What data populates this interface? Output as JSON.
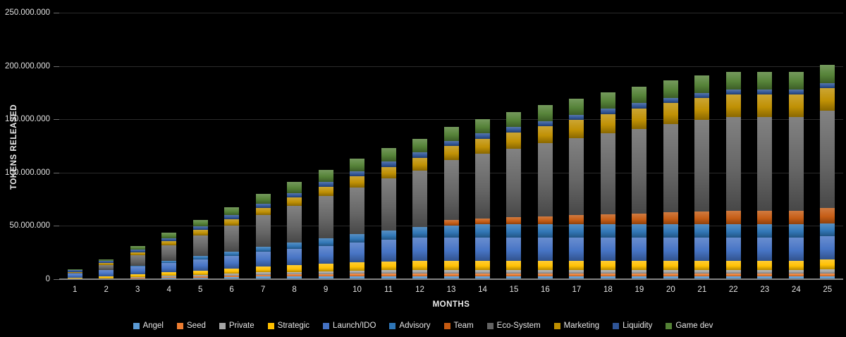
{
  "chart_data": {
    "type": "bar",
    "stacked": true,
    "title": "",
    "xlabel": "MONTHS",
    "ylabel": "TOKENS RELEASED",
    "ylim": [
      0,
      250000000
    ],
    "grid": true,
    "legend_position": "bottom",
    "ytick_values": [
      0,
      50000000,
      100000000,
      150000000,
      200000000,
      250000000
    ],
    "ytick_labels": [
      "0",
      "50.000.000",
      "100.000.000",
      "150.000.000",
      "200.000.000",
      "250.000.000"
    ],
    "categories": [
      1,
      2,
      3,
      4,
      5,
      6,
      7,
      8,
      9,
      10,
      11,
      12,
      13,
      14,
      15,
      16,
      17,
      18,
      19,
      20,
      21,
      22,
      23,
      24,
      25
    ],
    "series": [
      {
        "name": "Angel",
        "color": "#5B9BD5",
        "values": [
          0,
          400000,
          800000,
          1200000,
          1600000,
          2000000,
          2400000,
          2400000,
          2400000,
          2400000,
          2400000,
          2400000,
          2400000,
          2400000,
          2400000,
          2400000,
          2400000,
          2400000,
          2400000,
          2400000,
          2400000,
          2400000,
          2400000,
          2400000,
          2400000
        ]
      },
      {
        "name": "Seed",
        "color": "#ED7D31",
        "values": [
          0,
          300000,
          600000,
          900000,
          1200000,
          1500000,
          1800000,
          2100000,
          2400000,
          2600000,
          2600000,
          2600000,
          2600000,
          2600000,
          2600000,
          2600000,
          2600000,
          2600000,
          2600000,
          2600000,
          2600000,
          2600000,
          2600000,
          2600000,
          2600000
        ]
      },
      {
        "name": "Private",
        "color": "#A5A5A5",
        "values": [
          0,
          300000,
          700000,
          1000000,
          1400000,
          1700000,
          2100000,
          2400000,
          2800000,
          3100000,
          3500000,
          3500000,
          3500000,
          3500000,
          3500000,
          3500000,
          3500000,
          3500000,
          3500000,
          3500000,
          3500000,
          3500000,
          3500000,
          3500000,
          4500000
        ]
      },
      {
        "name": "Strategic",
        "color": "#FFC000",
        "values": [
          1200000,
          1900000,
          2600000,
          3300000,
          4000000,
          4700000,
          5400000,
          6100000,
          6800000,
          7500000,
          8200000,
          8800000,
          8800000,
          8800000,
          8800000,
          8800000,
          8800000,
          8800000,
          8800000,
          8800000,
          8800000,
          8800000,
          8800000,
          8800000,
          8800000
        ]
      },
      {
        "name": "Launch/IDO",
        "color": "#4472C4",
        "values": [
          4000000,
          5600000,
          7200000,
          8900000,
          10500000,
          12100000,
          13800000,
          15400000,
          17000000,
          18700000,
          20300000,
          22000000,
          22000000,
          22000000,
          22000000,
          22000000,
          22000000,
          22000000,
          22000000,
          22000000,
          22000000,
          22000000,
          22000000,
          22000000,
          22000000
        ]
      },
      {
        "name": "Advisory",
        "color": "#2E75B6",
        "values": [
          0,
          0,
          1000000,
          2000000,
          3000000,
          4000000,
          5000000,
          6000000,
          7000000,
          8000000,
          9000000,
          10000000,
          11000000,
          12000000,
          12000000,
          12000000,
          12000000,
          12000000,
          12000000,
          12000000,
          12000000,
          12000000,
          12000000,
          12000000,
          12000000
        ]
      },
      {
        "name": "Team",
        "color": "#C55A11",
        "values": [
          0,
          0,
          0,
          0,
          0,
          0,
          0,
          0,
          0,
          0,
          0,
          0,
          5000000,
          5900000,
          6800000,
          7700000,
          8600000,
          9500000,
          10400000,
          11300000,
          12200000,
          13000000,
          13000000,
          13000000,
          14500000
        ]
      },
      {
        "name": "Eco-System",
        "color": "#636363",
        "values": [
          1000000,
          4500000,
          9500000,
          14500000,
          19500000,
          24500000,
          29500000,
          34500000,
          39500000,
          44000000,
          48500000,
          52500000,
          56500000,
          60500000,
          64500000,
          68500000,
          72500000,
          76000000,
          79500000,
          83000000,
          86000000,
          88000000,
          88000000,
          88000000,
          91000000
        ]
      },
      {
        "name": "Marketing",
        "color": "#BF8F00",
        "values": [
          500000,
          2000000,
          3000000,
          4000000,
          5000000,
          6000000,
          7000000,
          8000000,
          9000000,
          10000000,
          11000000,
          12000000,
          13000000,
          14000000,
          15000000,
          16000000,
          17000000,
          18000000,
          19000000,
          19700000,
          20300000,
          20800000,
          20800000,
          20800000,
          21300000
        ]
      },
      {
        "name": "Liquidity",
        "color": "#2F5597",
        "values": [
          2000000,
          2300000,
          2600000,
          2900000,
          3200000,
          3500000,
          3800000,
          4100000,
          4400000,
          4700000,
          5000000,
          5000000,
          5000000,
          5000000,
          5000000,
          5000000,
          5000000,
          5000000,
          5000000,
          5000000,
          5000000,
          5000000,
          5000000,
          5000000,
          5000000
        ]
      },
      {
        "name": "Game dev",
        "color": "#538135",
        "values": [
          500000,
          1000000,
          3000000,
          5000000,
          6300000,
          7500000,
          9000000,
          10500000,
          11500000,
          12000000,
          12500000,
          13000000,
          13400000,
          13800000,
          14200000,
          14600000,
          15000000,
          15400000,
          15700000,
          16000000,
          16300000,
          16500000,
          16500000,
          16500000,
          16700000
        ]
      }
    ]
  },
  "colors": {
    "background": "#000000",
    "gridline": "#2b2b2b",
    "axis_line": "#858585",
    "tick_text": "#e2e2e2",
    "title_text": "#ececec"
  }
}
